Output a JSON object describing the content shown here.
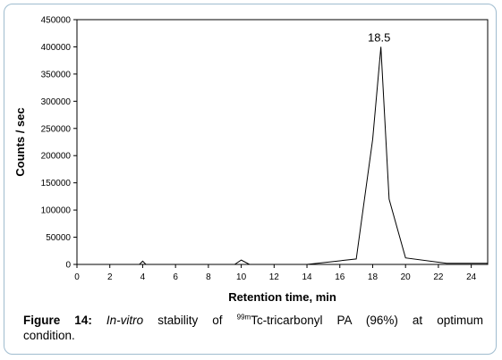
{
  "chart_data": {
    "type": "line",
    "xlabel": "Retention time, min",
    "ylabel": "Counts / sec",
    "xlim": [
      0,
      25
    ],
    "ylim": [
      0,
      450000
    ],
    "x_ticks": [
      0,
      2,
      4,
      6,
      8,
      10,
      12,
      14,
      16,
      18,
      20,
      22,
      24
    ],
    "y_ticks": [
      0,
      50000,
      100000,
      150000,
      200000,
      250000,
      300000,
      350000,
      400000,
      450000
    ],
    "grid": false,
    "legend": "none",
    "line_color": "#000000",
    "series": [
      {
        "x": [
          0,
          3.8,
          4.0,
          4.2,
          9.6,
          10.0,
          10.5,
          14.0,
          17.0,
          18.0,
          18.5,
          19.0,
          20.0,
          22.5,
          25.0
        ],
        "y": [
          0,
          0,
          6000,
          0,
          0,
          8000,
          0,
          0,
          10000,
          230000,
          400000,
          120000,
          12000,
          2000,
          2000
        ]
      }
    ],
    "annotations": [
      {
        "text": "18.5",
        "x": 18.5,
        "y": 400000
      }
    ]
  },
  "caption": {
    "label": "Figure 14:",
    "italic": "In-vitro",
    "text_before_sup": " stability of ",
    "sup": "99m",
    "text_after_sup": "Tc-tricarbonyl PA (96%) at optimum",
    "line2": "condition."
  }
}
